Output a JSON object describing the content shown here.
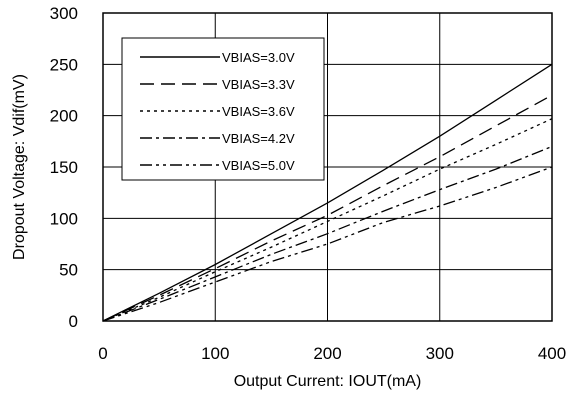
{
  "chart_data": {
    "type": "line",
    "title": "",
    "xlabel": "Output Current: IOUT(mA)",
    "ylabel": "Dropout Voltage: Vdif(mV)",
    "xlim": [
      0,
      400
    ],
    "ylim": [
      0,
      300
    ],
    "xticks": [
      0,
      100,
      200,
      300,
      400
    ],
    "yticks": [
      0,
      50,
      100,
      150,
      200,
      250,
      300
    ],
    "grid": "horizontal and vertical",
    "legend_position": "top-left",
    "series": [
      {
        "name": "VBIAS=3.0V",
        "x": [
          0,
          50,
          100,
          150,
          200,
          250,
          300,
          350,
          400
        ],
        "y": [
          0,
          27,
          55,
          85,
          115,
          147,
          180,
          215,
          250
        ],
        "dash": "solid"
      },
      {
        "name": "VBIAS=3.3V",
        "x": [
          0,
          50,
          100,
          150,
          200,
          250,
          300,
          350,
          400
        ],
        "y": [
          0,
          25,
          51,
          78,
          103,
          132,
          160,
          190,
          220
        ],
        "dash": "long-dash"
      },
      {
        "name": "VBIAS=3.6V",
        "x": [
          0,
          50,
          100,
          150,
          200,
          250,
          300,
          350,
          400
        ],
        "y": [
          0,
          23,
          48,
          72,
          97,
          122,
          148,
          172,
          197
        ],
        "dash": "dot"
      },
      {
        "name": "VBIAS=4.2V",
        "x": [
          0,
          50,
          100,
          150,
          200,
          250,
          300,
          350,
          400
        ],
        "y": [
          0,
          21,
          43,
          65,
          85,
          107,
          128,
          148,
          170
        ],
        "dash": "dash-dot"
      },
      {
        "name": "VBIAS=5.0V",
        "x": [
          0,
          50,
          100,
          150,
          200,
          250,
          300,
          350,
          400
        ],
        "y": [
          0,
          18,
          38,
          58,
          75,
          96,
          112,
          130,
          150
        ],
        "dash": "dash-dot-dot"
      }
    ]
  }
}
